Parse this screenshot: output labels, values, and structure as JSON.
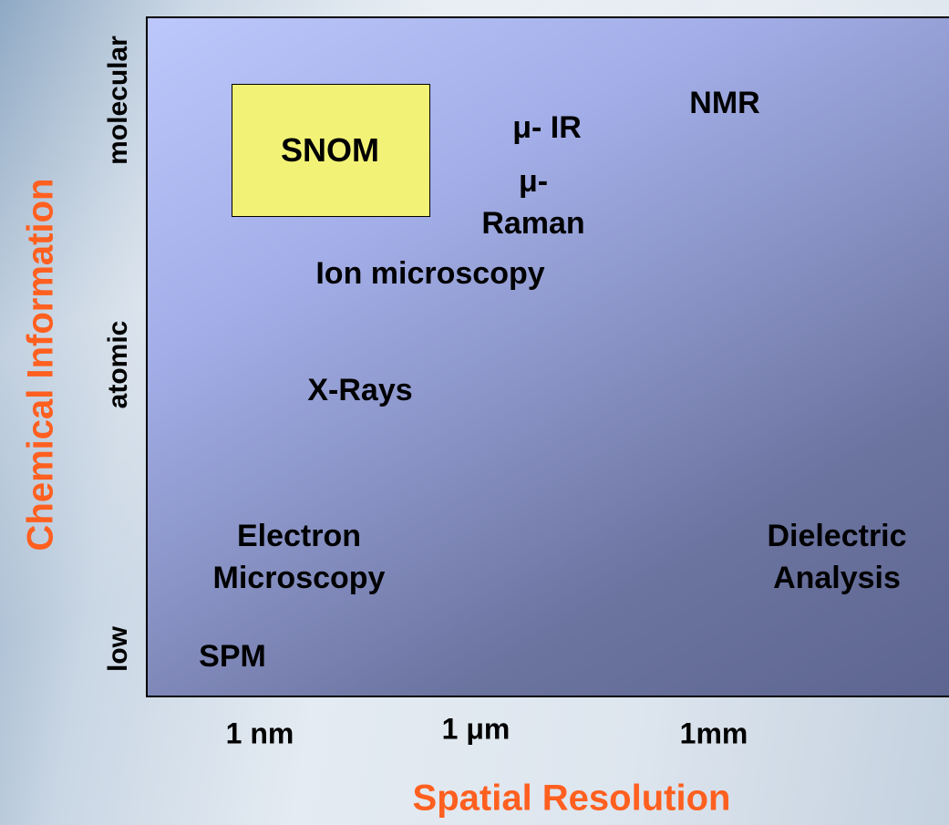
{
  "axes": {
    "y_title": "Chemical Information",
    "y_levels": [
      "molecular",
      "atomic",
      "low"
    ],
    "x_title": "Spatial Resolution",
    "x_levels": [
      "1 nm",
      "1 μm",
      "1mm"
    ]
  },
  "techniques": [
    {
      "lines": [
        "SNOM"
      ]
    },
    {
      "lines": [
        "μ- IR"
      ]
    },
    {
      "lines": [
        "μ-",
        "Raman"
      ]
    },
    {
      "lines": [
        "NMR"
      ]
    },
    {
      "lines": [
        "Ion microscopy"
      ]
    },
    {
      "lines": [
        "X-Rays"
      ]
    },
    {
      "lines": [
        "Electron",
        "Microscopy"
      ]
    },
    {
      "lines": [
        "Dielectric",
        "Analysis"
      ]
    },
    {
      "lines": [
        "SPM"
      ]
    }
  ]
}
